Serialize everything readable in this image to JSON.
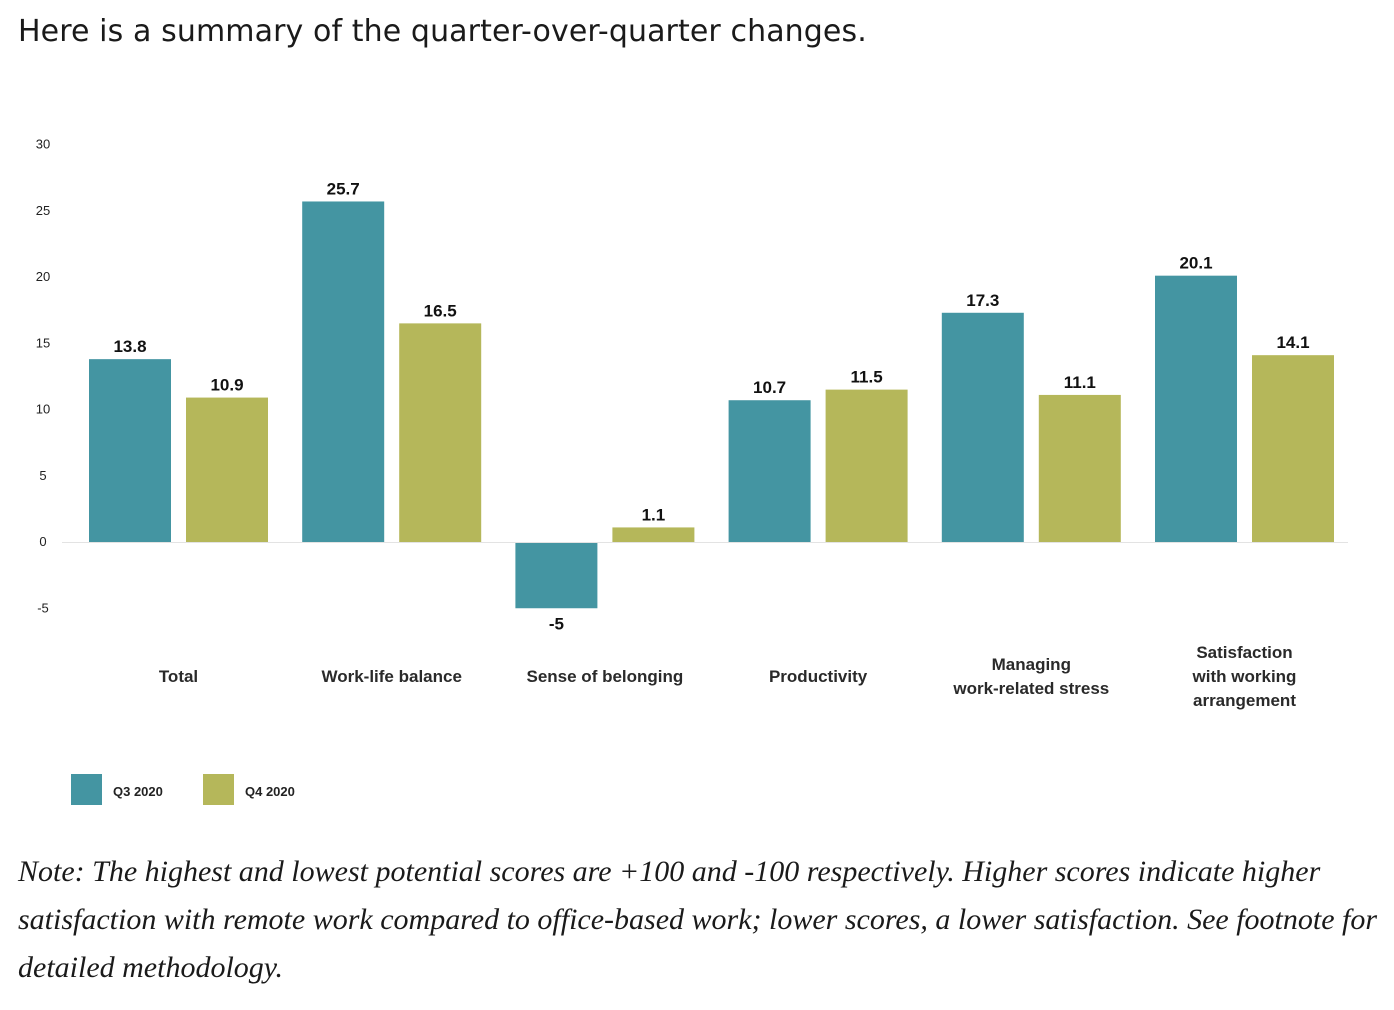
{
  "page": {
    "heading": "Here is a summary of the quarter-over-quarter changes.",
    "note": "Note: The highest and lowest potential scores are +100 and -100 respectively. Higher scores indicate higher satisfaction with remote work compared to office-based work; lower scores, a lower satisfaction. See footnote for detailed methodology."
  },
  "chart_data": {
    "type": "bar",
    "categories": [
      [
        "Total"
      ],
      [
        "Work-life balance"
      ],
      [
        "Sense of belonging"
      ],
      [
        "Productivity"
      ],
      [
        "Managing",
        "work-related stress"
      ],
      [
        "Satisfaction",
        "with working",
        "arrangement"
      ]
    ],
    "series": [
      {
        "name": "Q3 2020",
        "color": "#4495a2",
        "values": [
          13.8,
          25.7,
          -5,
          10.7,
          17.3,
          20.1
        ]
      },
      {
        "name": "Q4 2020",
        "color": "#b5b75a",
        "values": [
          10.9,
          16.5,
          1.1,
          11.5,
          11.1,
          14.1
        ]
      }
    ],
    "value_labels": [
      [
        "13.8",
        "25.7",
        "-5",
        "10.7",
        "17.3",
        "20.1"
      ],
      [
        "10.9",
        "16.5",
        "1.1",
        "11.5",
        "11.1",
        "14.1"
      ]
    ],
    "yticks": [
      30,
      25,
      20,
      15,
      10,
      5,
      0,
      -5
    ],
    "ylim": [
      -5,
      30
    ],
    "title": "",
    "xlabel": "",
    "ylabel": "",
    "grid": false,
    "legend_position": "bottom-left"
  }
}
